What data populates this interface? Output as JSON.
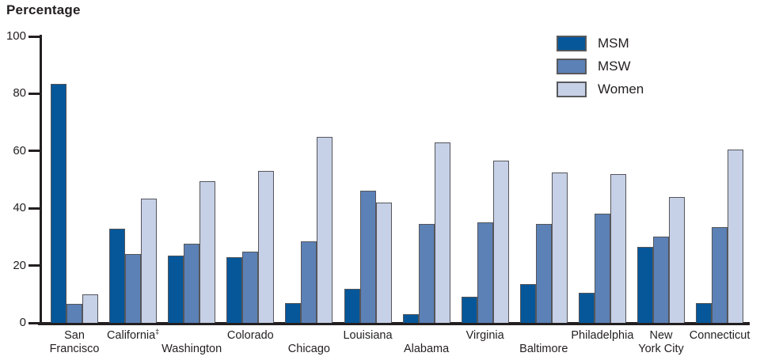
{
  "title": "Percentage",
  "colors": {
    "axis": "#231f20",
    "text": "#231f20",
    "bar_border": "#55565a",
    "msm": "#05579a",
    "msw": "#5c81b6",
    "women": "#c6d0e7"
  },
  "legend": {
    "items": [
      {
        "label": "MSM",
        "color": "#05579a"
      },
      {
        "label": "MSW",
        "color": "#5c81b6"
      },
      {
        "label": "Women",
        "color": "#c6d0e7"
      }
    ]
  },
  "chart_data": {
    "type": "bar",
    "title": "Percentage",
    "ylabel": "Percentage",
    "xlabel": "",
    "ylim": [
      0,
      100
    ],
    "yticks": [
      0,
      20,
      40,
      60,
      80,
      100
    ],
    "grid": false,
    "legend_position": "top-right",
    "categories": [
      "San Francisco",
      "California‡",
      "Washington",
      "Colorado",
      "Chicago",
      "Louisiana",
      "Alabama",
      "Virginia",
      "Baltimore",
      "Philadelphia",
      "New York City",
      "Connecticut"
    ],
    "x_label_layout": [
      {
        "lines": [
          "San",
          "Francisco"
        ],
        "row": 1
      },
      {
        "lines": [
          "California"
        ],
        "sup": "‡",
        "row": 1
      },
      {
        "lines": [
          "Washington"
        ],
        "row": 2
      },
      {
        "lines": [
          "Colorado"
        ],
        "row": 1
      },
      {
        "lines": [
          "Chicago"
        ],
        "row": 2
      },
      {
        "lines": [
          "Louisiana"
        ],
        "row": 1
      },
      {
        "lines": [
          "Alabama"
        ],
        "row": 2
      },
      {
        "lines": [
          "Virginia"
        ],
        "row": 1
      },
      {
        "lines": [
          "Baltimore"
        ],
        "row": 2
      },
      {
        "lines": [
          "Philadelphia"
        ],
        "row": 1
      },
      {
        "lines": [
          "New",
          "York City"
        ],
        "row": 1
      },
      {
        "lines": [
          "Connecticut"
        ],
        "row": 1
      }
    ],
    "series": [
      {
        "name": "MSM",
        "color": "#05579a",
        "values": [
          83.5,
          33,
          23.5,
          23,
          7,
          12,
          3,
          9,
          13.5,
          10.5,
          26.5,
          7
        ]
      },
      {
        "name": "MSW",
        "color": "#5c81b6",
        "values": [
          6.5,
          24,
          27.5,
          25,
          28.5,
          46,
          34.5,
          35,
          34.5,
          38,
          30,
          33.5
        ]
      },
      {
        "name": "Women",
        "color": "#c6d0e7",
        "values": [
          10,
          43.5,
          49.5,
          53,
          65,
          42,
          63,
          56.5,
          52.5,
          52,
          44,
          60.5
        ]
      }
    ]
  }
}
